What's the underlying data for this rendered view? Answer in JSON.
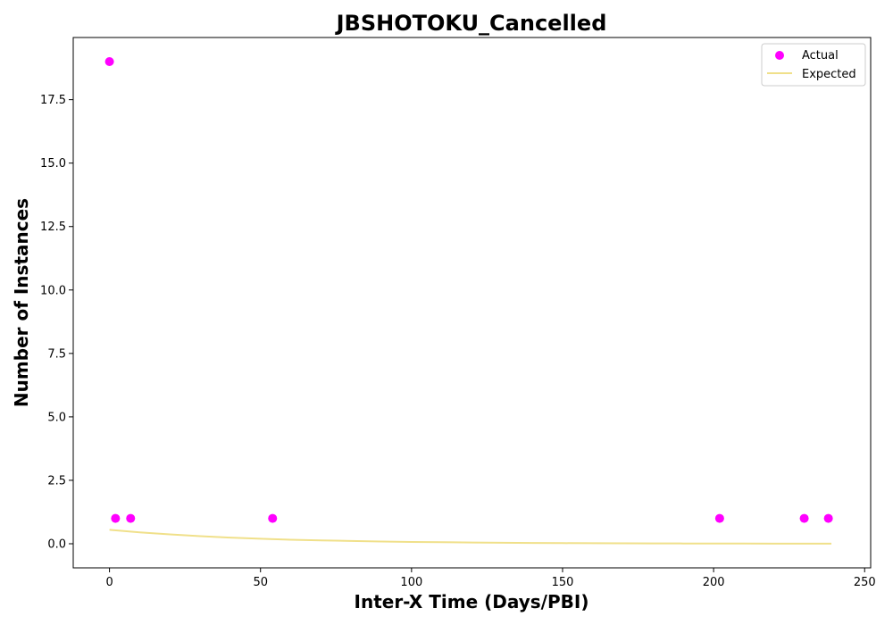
{
  "chart_data": {
    "type": "scatter",
    "title": "JBSHOTOKU_Cancelled",
    "xlabel": "Inter-X Time (Days/PBI)",
    "ylabel": "Number of Instances",
    "xlim": [
      -12,
      252
    ],
    "ylim": [
      -0.95,
      19.95
    ],
    "x_ticks": [
      0,
      50,
      100,
      150,
      200,
      250
    ],
    "x_tick_labels": [
      "0",
      "50",
      "100",
      "150",
      "200",
      "250"
    ],
    "y_ticks": [
      0,
      2.5,
      5,
      7.5,
      10,
      12.5,
      15,
      17.5
    ],
    "y_tick_labels": [
      "0.0",
      "2.5",
      "5.0",
      "7.5",
      "10.0",
      "12.5",
      "15.0",
      "17.5"
    ],
    "grid": false,
    "legend_position": "top-right",
    "series": [
      {
        "name": "Actual",
        "kind": "scatter",
        "color": "#ff00ff",
        "x": [
          0,
          2,
          7,
          54,
          202,
          230,
          238
        ],
        "y": [
          19,
          1,
          1,
          1,
          1,
          1,
          1
        ]
      },
      {
        "name": "Expected",
        "kind": "line",
        "color": "#f0e08a",
        "x": [
          0,
          10,
          20,
          30,
          40,
          50,
          60,
          70,
          80,
          90,
          100,
          110,
          120,
          130,
          140,
          150,
          160,
          170,
          180,
          190,
          200,
          210,
          220,
          230,
          239
        ],
        "y": [
          0.55,
          0.45,
          0.37,
          0.3,
          0.24,
          0.2,
          0.16,
          0.13,
          0.11,
          0.09,
          0.07,
          0.06,
          0.05,
          0.04,
          0.03,
          0.025,
          0.02,
          0.017,
          0.014,
          0.011,
          0.009,
          0.007,
          0.006,
          0.005,
          0.004
        ]
      }
    ]
  }
}
